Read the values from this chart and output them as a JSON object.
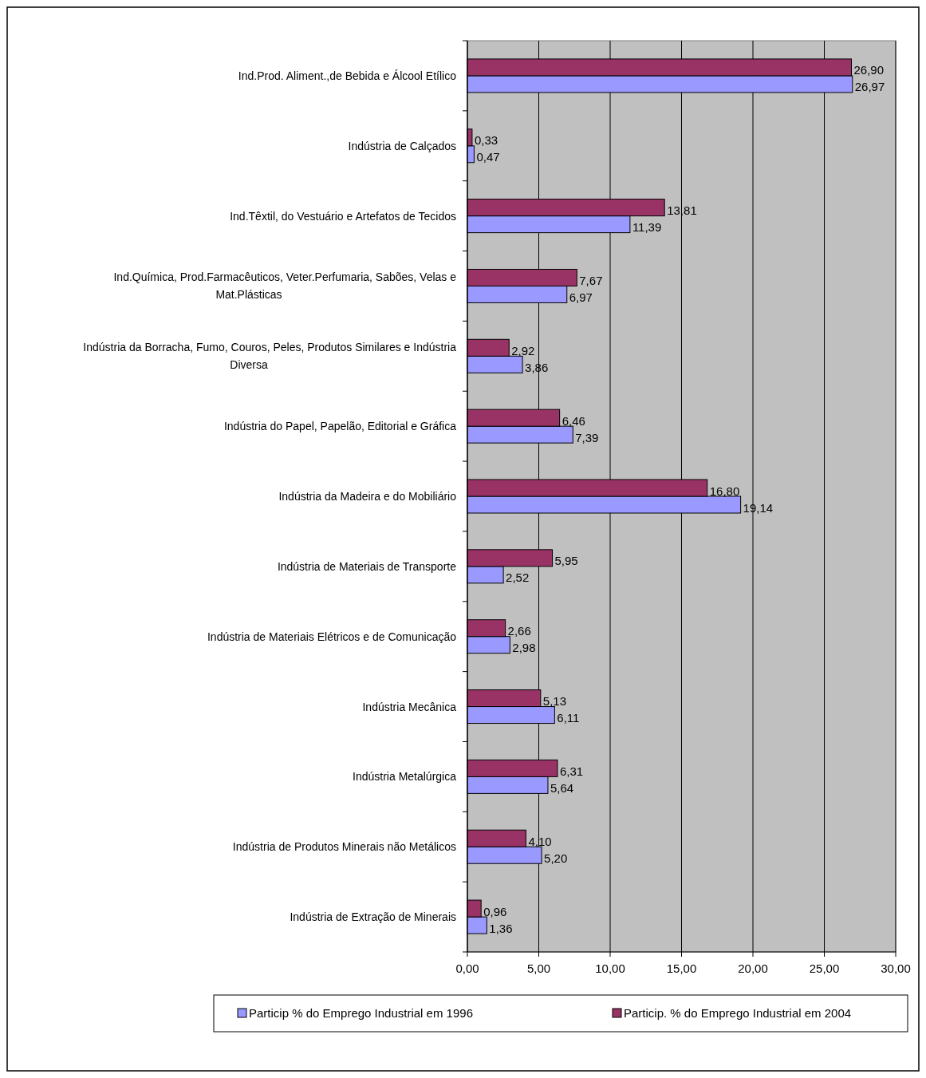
{
  "chart_data": {
    "type": "bar",
    "orientation": "horizontal",
    "categories": [
      "Ind.Prod. Aliment.,de Bebida e Álcool Etílico",
      "Indústria de Calçados",
      "Ind.Têxtil, do Vestuário e Artefatos de Tecidos",
      "Ind.Química, Prod.Farmacêuticos, Veter.Perfumaria, Sabões, Velas e Mat.Plásticas",
      "Indústria da Borracha, Fumo, Couros, Peles, Produtos Similares e Indústria Diversa",
      "Indústria do Papel, Papelão, Editorial e Gráfica",
      "Indústria da Madeira e do Mobiliário",
      "Indústria de Materiais de Transporte",
      "Indústria de Materiais Elétricos e de Comunicação",
      "Indústria Mecânica",
      "Indústria Metalúrgica",
      "Indústria de Produtos Minerais não Metálicos",
      "Indústria de Extração de Minerais"
    ],
    "series": [
      {
        "name": "Particip % do Emprego Industrial em 1996",
        "color": "#9999ff",
        "values": [
          26.97,
          0.47,
          11.39,
          6.97,
          3.86,
          7.39,
          19.14,
          2.52,
          2.98,
          6.11,
          5.64,
          5.2,
          1.36
        ],
        "value_labels": [
          "26,97",
          "0,47",
          "11,39",
          "6,97",
          "3,86",
          "7,39",
          "19,14",
          "2,52",
          "2,98",
          "6,11",
          "5,64",
          "5,20",
          "1,36"
        ]
      },
      {
        "name": "Particip. % do Emprego Industrial em 2004",
        "color": "#993366",
        "values": [
          26.9,
          0.33,
          13.81,
          7.67,
          2.92,
          6.46,
          16.8,
          5.95,
          2.66,
          5.13,
          6.31,
          4.1,
          0.96
        ],
        "value_labels": [
          "26,90",
          "0,33",
          "13,81",
          "7,67",
          "2,92",
          "6,46",
          "16,80",
          "5,95",
          "2,66",
          "5,13",
          "6,31",
          "4,10",
          "0,96"
        ]
      }
    ],
    "xlim": [
      0,
      30
    ],
    "xticks": [
      {
        "value": 0,
        "label": "0,00"
      },
      {
        "value": 5,
        "label": "5,00"
      },
      {
        "value": 10,
        "label": "10,00"
      },
      {
        "value": 15,
        "label": "15,00"
      },
      {
        "value": 20,
        "label": "20,00"
      },
      {
        "value": 25,
        "label": "25,00"
      },
      {
        "value": 30,
        "label": "30,00"
      }
    ],
    "grid": "x",
    "legend": "bottom"
  }
}
